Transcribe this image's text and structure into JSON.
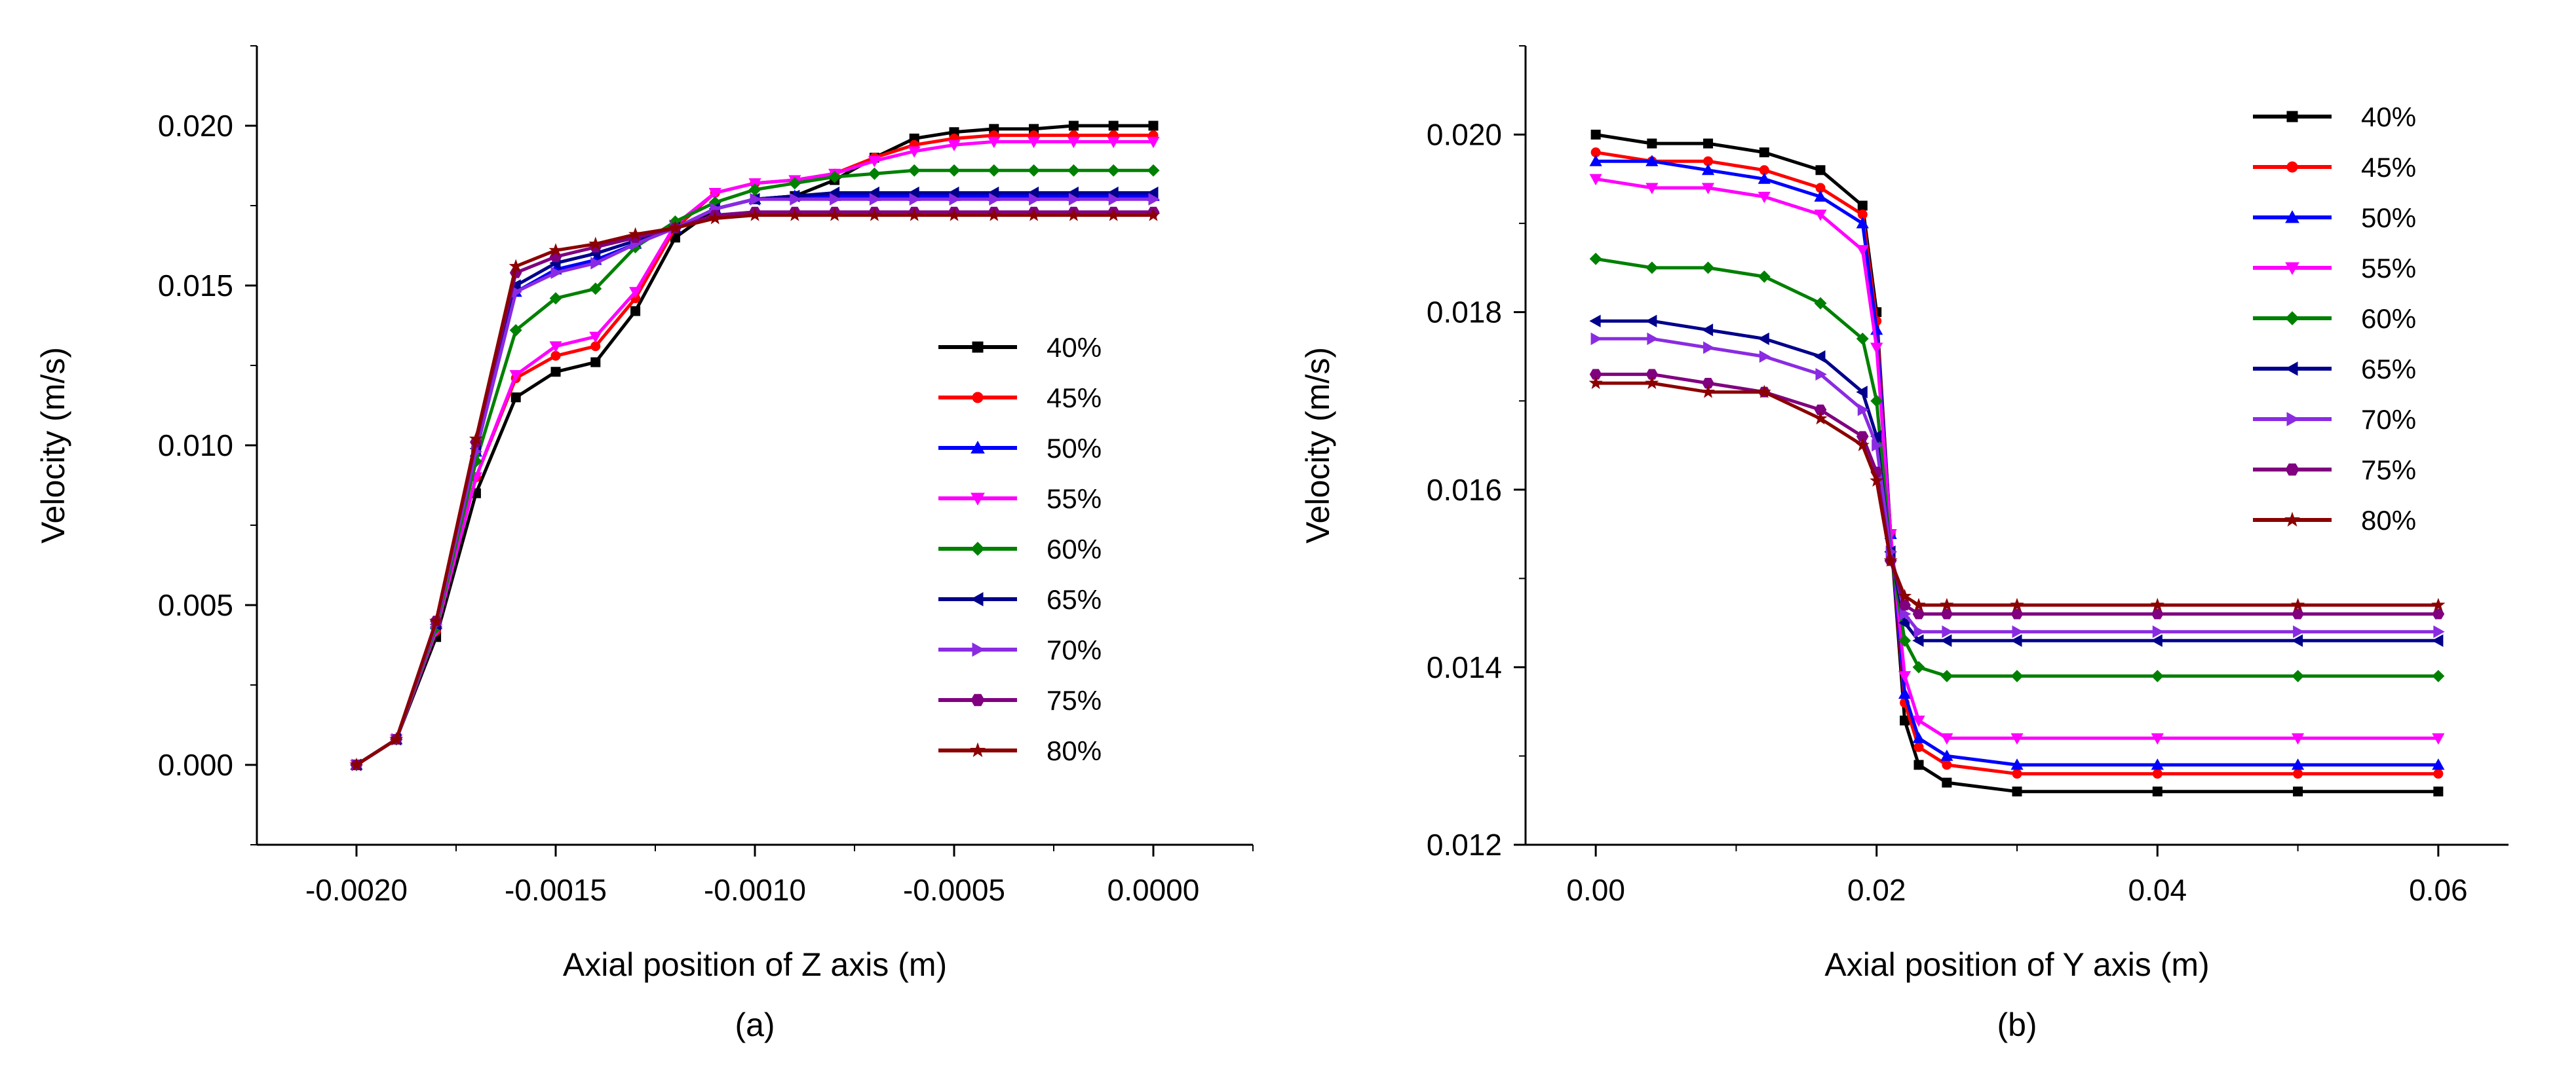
{
  "chart_data": [
    {
      "type": "line",
      "panel_label": "(a)",
      "xlabel": "Axial position of Z axis (m)",
      "ylabel": "Velocity (m/s)",
      "xlim": [
        -0.00225,
        0.00025
      ],
      "ylim": [
        -0.0025,
        0.0225
      ],
      "xticks": [
        -0.002,
        -0.0015,
        -0.001,
        -0.0005,
        0.0
      ],
      "xtick_labels": [
        "-0.0020",
        "-0.0015",
        "-0.0010",
        "-0.0005",
        "0.0000"
      ],
      "yticks": [
        0.0,
        0.005,
        0.01,
        0.015,
        0.02
      ],
      "ytick_labels": [
        "0.000",
        "0.005",
        "0.010",
        "0.015",
        "0.020"
      ],
      "legend_position": "right",
      "x": [
        -0.002,
        -0.0019,
        -0.0018,
        -0.0017,
        -0.0016,
        -0.0015,
        -0.0014,
        -0.0013,
        -0.0012,
        -0.0011,
        -0.001,
        -0.0009,
        -0.0008,
        -0.0007,
        -0.0006,
        -0.0005,
        -0.0004,
        -0.0003,
        -0.0002,
        -0.0001,
        0.0
      ],
      "series": [
        {
          "name": "40%",
          "color": "#000000",
          "marker": "square",
          "values": [
            0.0,
            0.0008,
            0.004,
            0.0085,
            0.0115,
            0.0123,
            0.0126,
            0.0142,
            0.0165,
            0.0174,
            0.0177,
            0.0178,
            0.0183,
            0.019,
            0.0196,
            0.0198,
            0.0199,
            0.0199,
            0.02,
            0.02,
            0.02
          ]
        },
        {
          "name": "45%",
          "color": "#ff0000",
          "marker": "circle",
          "values": [
            0.0,
            0.0008,
            0.0042,
            0.009,
            0.0121,
            0.0128,
            0.0131,
            0.0146,
            0.0168,
            0.0179,
            0.0182,
            0.0183,
            0.0185,
            0.019,
            0.0194,
            0.0196,
            0.0197,
            0.0197,
            0.0197,
            0.0197,
            0.0197
          ]
        },
        {
          "name": "50%",
          "color": "#0000ff",
          "marker": "triangle-up",
          "values": [
            0.0,
            0.0008,
            0.0044,
            0.0098,
            0.0148,
            0.0155,
            0.0158,
            0.0163,
            0.0168,
            0.0174,
            0.0177,
            0.0178,
            0.0178,
            0.0178,
            0.0178,
            0.0178,
            0.0178,
            0.0178,
            0.0178,
            0.0178,
            0.0178
          ]
        },
        {
          "name": "55%",
          "color": "#ff00ff",
          "marker": "triangle-down",
          "values": [
            0.0,
            0.0008,
            0.0042,
            0.009,
            0.0122,
            0.0131,
            0.0134,
            0.0148,
            0.0169,
            0.0179,
            0.0182,
            0.0183,
            0.0185,
            0.0189,
            0.0192,
            0.0194,
            0.0195,
            0.0195,
            0.0195,
            0.0195,
            0.0195
          ]
        },
        {
          "name": "60%",
          "color": "#008000",
          "marker": "diamond",
          "values": [
            0.0,
            0.0008,
            0.0043,
            0.0095,
            0.0136,
            0.0146,
            0.0149,
            0.0162,
            0.017,
            0.0176,
            0.018,
            0.0182,
            0.0184,
            0.0185,
            0.0186,
            0.0186,
            0.0186,
            0.0186,
            0.0186,
            0.0186,
            0.0186
          ]
        },
        {
          "name": "65%",
          "color": "#00008b",
          "marker": "triangle-left",
          "values": [
            0.0,
            0.0008,
            0.0044,
            0.0099,
            0.015,
            0.0157,
            0.016,
            0.0164,
            0.0168,
            0.0174,
            0.0177,
            0.0178,
            0.0179,
            0.0179,
            0.0179,
            0.0179,
            0.0179,
            0.0179,
            0.0179,
            0.0179,
            0.0179
          ]
        },
        {
          "name": "70%",
          "color": "#8a2be2",
          "marker": "triangle-right",
          "values": [
            0.0,
            0.0008,
            0.0044,
            0.0098,
            0.0148,
            0.0154,
            0.0157,
            0.0163,
            0.0168,
            0.0174,
            0.0177,
            0.0177,
            0.0177,
            0.0177,
            0.0177,
            0.0177,
            0.0177,
            0.0177,
            0.0177,
            0.0177,
            0.0177
          ]
        },
        {
          "name": "75%",
          "color": "#800080",
          "marker": "hexagon",
          "values": [
            0.0,
            0.0008,
            0.0045,
            0.0101,
            0.0154,
            0.0159,
            0.0162,
            0.0165,
            0.0168,
            0.0172,
            0.0173,
            0.0173,
            0.0173,
            0.0173,
            0.0173,
            0.0173,
            0.0173,
            0.0173,
            0.0173,
            0.0173,
            0.0173
          ]
        },
        {
          "name": "80%",
          "color": "#8b0000",
          "marker": "star",
          "values": [
            0.0,
            0.0008,
            0.0045,
            0.0102,
            0.0156,
            0.0161,
            0.0163,
            0.0166,
            0.0168,
            0.0171,
            0.0172,
            0.0172,
            0.0172,
            0.0172,
            0.0172,
            0.0172,
            0.0172,
            0.0172,
            0.0172,
            0.0172,
            0.0172
          ]
        }
      ]
    },
    {
      "type": "line",
      "panel_label": "(b)",
      "xlabel": "Axial position of Y axis (m)",
      "ylabel": "Velocity (m/s)",
      "xlim": [
        -0.005,
        0.065
      ],
      "ylim": [
        0.012,
        0.021
      ],
      "xticks": [
        0.0,
        0.02,
        0.04,
        0.06
      ],
      "xtick_labels": [
        "0.00",
        "0.02",
        "0.04",
        "0.06"
      ],
      "yticks": [
        0.012,
        0.014,
        0.016,
        0.018,
        0.02
      ],
      "ytick_labels": [
        "0.012",
        "0.014",
        "0.016",
        "0.018",
        "0.020"
      ],
      "legend_position": "top-right",
      "x": [
        0.0,
        0.004,
        0.008,
        0.012,
        0.016,
        0.019,
        0.02,
        0.021,
        0.022,
        0.023,
        0.025,
        0.03,
        0.04,
        0.05,
        0.06
      ],
      "series": [
        {
          "name": "40%",
          "color": "#000000",
          "marker": "square",
          "values": [
            0.02,
            0.0199,
            0.0199,
            0.0198,
            0.0196,
            0.0192,
            0.018,
            0.0155,
            0.0134,
            0.0129,
            0.0127,
            0.0126,
            0.0126,
            0.0126,
            0.0126
          ]
        },
        {
          "name": "45%",
          "color": "#ff0000",
          "marker": "circle",
          "values": [
            0.0198,
            0.0197,
            0.0197,
            0.0196,
            0.0194,
            0.0191,
            0.0179,
            0.0155,
            0.0136,
            0.0131,
            0.0129,
            0.0128,
            0.0128,
            0.0128,
            0.0128
          ]
        },
        {
          "name": "50%",
          "color": "#0000ff",
          "marker": "triangle-up",
          "values": [
            0.0197,
            0.0197,
            0.0196,
            0.0195,
            0.0193,
            0.019,
            0.0178,
            0.0155,
            0.0137,
            0.0132,
            0.013,
            0.0129,
            0.0129,
            0.0129,
            0.0129
          ]
        },
        {
          "name": "55%",
          "color": "#ff00ff",
          "marker": "triangle-down",
          "values": [
            0.0195,
            0.0194,
            0.0194,
            0.0193,
            0.0191,
            0.0187,
            0.0176,
            0.0155,
            0.0139,
            0.0134,
            0.0132,
            0.0132,
            0.0132,
            0.0132,
            0.0132
          ]
        },
        {
          "name": "60%",
          "color": "#008000",
          "marker": "diamond",
          "values": [
            0.0186,
            0.0185,
            0.0185,
            0.0184,
            0.0181,
            0.0177,
            0.017,
            0.0153,
            0.0143,
            0.014,
            0.0139,
            0.0139,
            0.0139,
            0.0139,
            0.0139
          ]
        },
        {
          "name": "65%",
          "color": "#00008b",
          "marker": "triangle-left",
          "values": [
            0.0179,
            0.0179,
            0.0178,
            0.0177,
            0.0175,
            0.0171,
            0.0166,
            0.0153,
            0.0145,
            0.0143,
            0.0143,
            0.0143,
            0.0143,
            0.0143,
            0.0143
          ]
        },
        {
          "name": "70%",
          "color": "#8a2be2",
          "marker": "triangle-right",
          "values": [
            0.0177,
            0.0177,
            0.0176,
            0.0175,
            0.0173,
            0.0169,
            0.0165,
            0.0153,
            0.0146,
            0.0144,
            0.0144,
            0.0144,
            0.0144,
            0.0144,
            0.0144
          ]
        },
        {
          "name": "75%",
          "color": "#800080",
          "marker": "hexagon",
          "values": [
            0.0173,
            0.0173,
            0.0172,
            0.0171,
            0.0169,
            0.0166,
            0.0162,
            0.0152,
            0.0147,
            0.0146,
            0.0146,
            0.0146,
            0.0146,
            0.0146,
            0.0146
          ]
        },
        {
          "name": "80%",
          "color": "#8b0000",
          "marker": "star",
          "values": [
            0.0172,
            0.0172,
            0.0171,
            0.0171,
            0.0168,
            0.0165,
            0.0161,
            0.0152,
            0.0148,
            0.0147,
            0.0147,
            0.0147,
            0.0147,
            0.0147,
            0.0147
          ]
        }
      ]
    }
  ]
}
